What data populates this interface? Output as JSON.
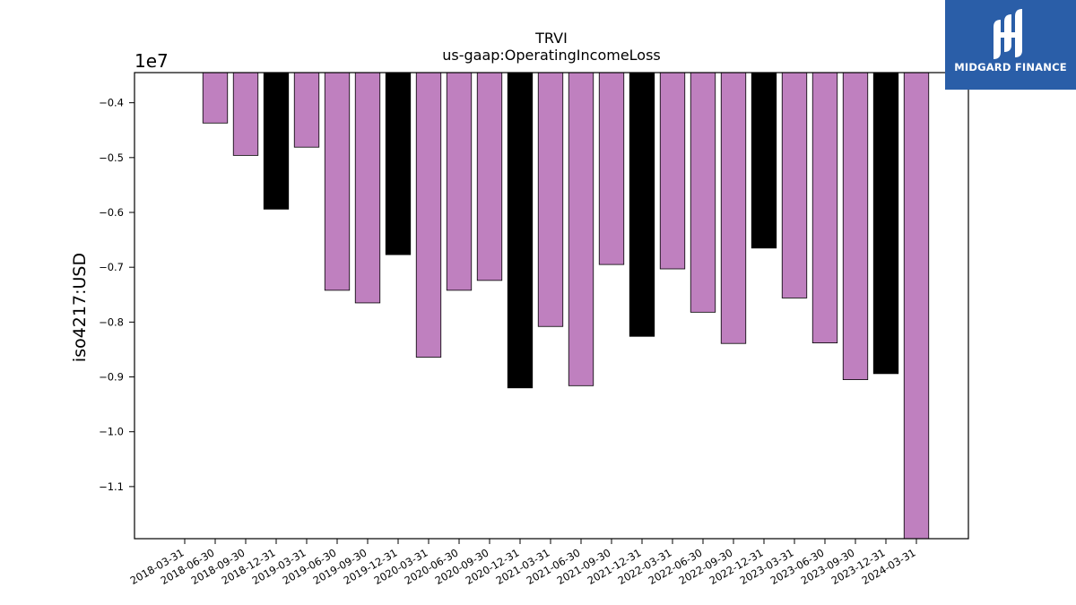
{
  "chart_data": {
    "type": "bar",
    "title": "TRVI",
    "subtitle": "us-gaap:OperatingIncomeLoss",
    "xlabel": "",
    "ylabel": "iso4217:USD",
    "y_multiplier_label": "1e7",
    "ylim": [
      -1.195,
      -0.345
    ],
    "yticks": [
      -0.4,
      -0.5,
      -0.6,
      -0.7,
      -0.8,
      -0.9,
      -1.0,
      -1.1
    ],
    "ytick_labels": [
      "−0.4",
      "−0.5",
      "−0.6",
      "−0.7",
      "−0.8",
      "−0.9",
      "−1.0",
      "−1.1"
    ],
    "categories": [
      "2018-03-31",
      "2018-06-30",
      "2018-09-30",
      "2018-12-31",
      "2019-03-31",
      "2019-06-30",
      "2019-09-30",
      "2019-12-31",
      "2020-03-31",
      "2020-06-30",
      "2020-09-30",
      "2020-12-31",
      "2021-03-31",
      "2021-06-30",
      "2021-09-30",
      "2021-12-31",
      "2022-03-31",
      "2022-06-30",
      "2022-09-30",
      "2022-12-31",
      "2023-03-31",
      "2023-06-30",
      "2023-09-30",
      "2023-12-31",
      "2024-03-31"
    ],
    "bars": [
      {
        "x": "2018-06-30",
        "value": -0.437,
        "color": "#bf80bf"
      },
      {
        "x": "2018-09-30",
        "value": -0.496,
        "color": "#bf80bf"
      },
      {
        "x": "2018-12-31",
        "value": -0.594,
        "color": "#000000"
      },
      {
        "x": "2019-03-31",
        "value": -0.481,
        "color": "#bf80bf"
      },
      {
        "x": "2019-06-30",
        "value": -0.742,
        "color": "#bf80bf"
      },
      {
        "x": "2019-09-30",
        "value": -0.765,
        "color": "#bf80bf"
      },
      {
        "x": "2019-12-31",
        "value": -0.677,
        "color": "#000000"
      },
      {
        "x": "2020-03-31",
        "value": -0.864,
        "color": "#bf80bf"
      },
      {
        "x": "2020-06-30",
        "value": -0.742,
        "color": "#bf80bf"
      },
      {
        "x": "2020-09-30",
        "value": -0.724,
        "color": "#bf80bf"
      },
      {
        "x": "2020-12-31",
        "value": -0.92,
        "color": "#000000"
      },
      {
        "x": "2021-03-31",
        "value": -0.808,
        "color": "#bf80bf"
      },
      {
        "x": "2021-06-30",
        "value": -0.916,
        "color": "#bf80bf"
      },
      {
        "x": "2021-09-30",
        "value": -0.695,
        "color": "#bf80bf"
      },
      {
        "x": "2021-12-31",
        "value": -0.826,
        "color": "#000000"
      },
      {
        "x": "2022-03-31",
        "value": -0.703,
        "color": "#bf80bf"
      },
      {
        "x": "2022-06-30",
        "value": -0.782,
        "color": "#bf80bf"
      },
      {
        "x": "2022-09-30",
        "value": -0.839,
        "color": "#bf80bf"
      },
      {
        "x": "2022-12-31",
        "value": -0.665,
        "color": "#000000"
      },
      {
        "x": "2023-03-31",
        "value": -0.756,
        "color": "#bf80bf"
      },
      {
        "x": "2023-06-30",
        "value": -0.838,
        "color": "#bf80bf"
      },
      {
        "x": "2023-09-30",
        "value": -0.905,
        "color": "#bf80bf"
      },
      {
        "x": "2023-12-31",
        "value": -0.894,
        "color": "#000000"
      },
      {
        "x": "2024-03-31",
        "value": -1.195,
        "color": "#bf80bf"
      }
    ],
    "grid": false,
    "legend": "none"
  },
  "logo": {
    "text": "MIDGARD FINANCE",
    "background": "#2a5ea8"
  }
}
